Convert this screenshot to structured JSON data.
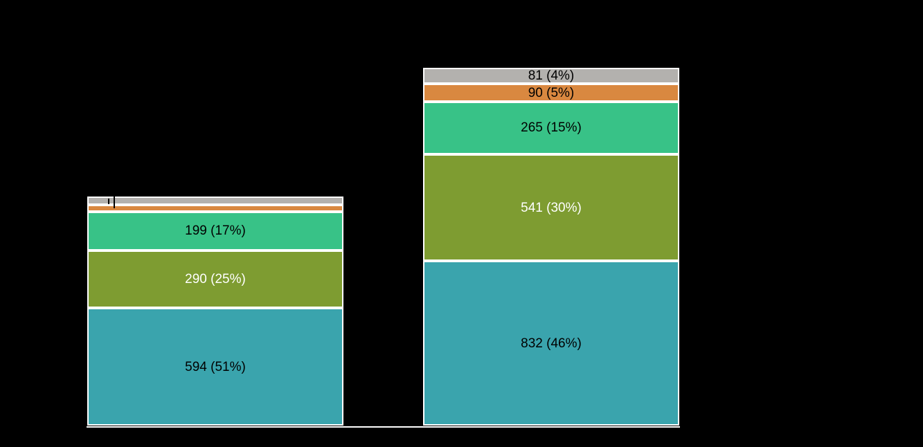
{
  "chart_data": {
    "type": "bar",
    "variant": "stacked-vertical",
    "title": "",
    "xlabel": "",
    "ylabel": "",
    "background_color": "#000000",
    "segment_border_color": "#ffffff",
    "axis_line_color": "#ffffff",
    "grid": false,
    "legend": false,
    "colors": {
      "gray": "#b3b1ae",
      "orange": "#d98840",
      "green": "#38c287",
      "olive": "#7e9c31",
      "teal": "#3aa4ad"
    },
    "bars": [
      {
        "name": "left",
        "segments": [
          {
            "color_key": "gray",
            "value": 42,
            "label": "",
            "estimated": true,
            "text_color": "#000000"
          },
          {
            "color_key": "orange",
            "value": 32,
            "label": "",
            "estimated": true,
            "text_color": "#000000"
          },
          {
            "color_key": "green",
            "value": 199,
            "label": "199 (17%)",
            "estimated": false,
            "text_color": "#000000"
          },
          {
            "color_key": "olive",
            "value": 290,
            "label": "290 (25%)",
            "estimated": false,
            "text_color": "#ffffff"
          },
          {
            "color_key": "teal",
            "value": 594,
            "label": "594 (51%)",
            "estimated": false,
            "text_color": "#000000"
          }
        ]
      },
      {
        "name": "right",
        "segments": [
          {
            "color_key": "gray",
            "value": 81,
            "label": "81 (4%)",
            "estimated": false,
            "text_color": "#000000"
          },
          {
            "color_key": "orange",
            "value": 90,
            "label": "90 (5%)",
            "estimated": false,
            "text_color": "#000000"
          },
          {
            "color_key": "green",
            "value": 265,
            "label": "265 (15%)",
            "estimated": false,
            "text_color": "#000000"
          },
          {
            "color_key": "olive",
            "value": 541,
            "label": "541 (30%)",
            "estimated": false,
            "text_color": "#ffffff"
          },
          {
            "color_key": "teal",
            "value": 832,
            "label": "832 (46%)",
            "estimated": false,
            "text_color": "#000000"
          }
        ]
      }
    ],
    "annotations": {
      "leader_lines_note": "two short black tick/leader lines over the thin top segments of the left bar"
    }
  }
}
